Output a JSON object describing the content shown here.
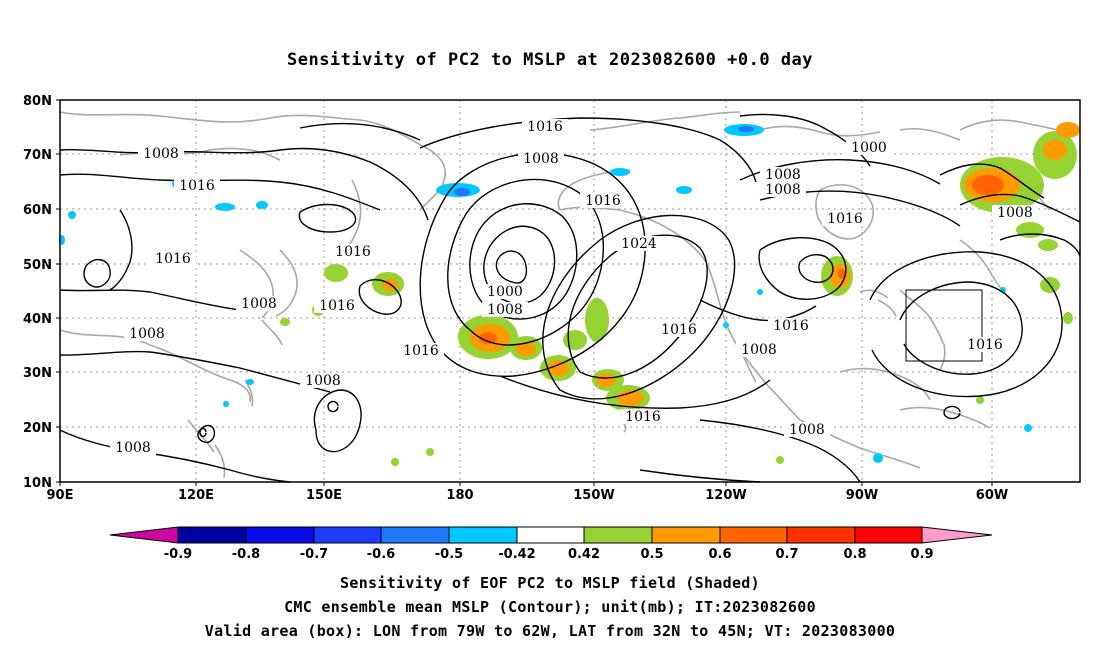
{
  "title": "Sensitivity of PC2 to MSLP at 2023082600 +0.0 day",
  "map": {
    "lat_labels": [
      "80N",
      "70N",
      "60N",
      "50N",
      "40N",
      "30N",
      "20N",
      "10N"
    ],
    "lon_labels": [
      "90E",
      "120E",
      "150E",
      "180",
      "150W",
      "120W",
      "90W",
      "60W"
    ],
    "contour_labels": [
      "1016",
      "1008",
      "1016",
      "1008",
      "1016",
      "1000",
      "1008",
      "1008",
      "1016",
      "1016",
      "1024",
      "1016",
      "1000",
      "1008",
      "1016",
      "1008",
      "1016",
      "1008",
      "1016",
      "1016",
      "1008",
      "1008",
      "1016",
      "1008",
      "1008",
      "1016",
      "1008"
    ],
    "box_label": "Valid area box"
  },
  "colorbar": {
    "labels": [
      "-0.9",
      "-0.8",
      "-0.7",
      "-0.6",
      "-0.5",
      "-0.42",
      "0.42",
      "0.5",
      "0.6",
      "0.7",
      "0.8",
      "0.9"
    ],
    "colors": [
      "#c8089e",
      "#0000a0",
      "#0a0ae6",
      "#1e3cff",
      "#1e78ff",
      "#00c8ff",
      "#ffffff",
      "#96d232",
      "#ff9b00",
      "#ff6400",
      "#ff3200",
      "#ff0000",
      "#ff9bc8"
    ]
  },
  "captions": {
    "line1": "Sensitivity of EOF PC2 to MSLP field (Shaded)",
    "line2": "CMC ensemble mean MSLP (Contour); unit(mb); IT:2023082600",
    "line3": "Valid area (box): LON from 79W to 62W, LAT from 32N to 45N; VT: 2023083000"
  }
}
